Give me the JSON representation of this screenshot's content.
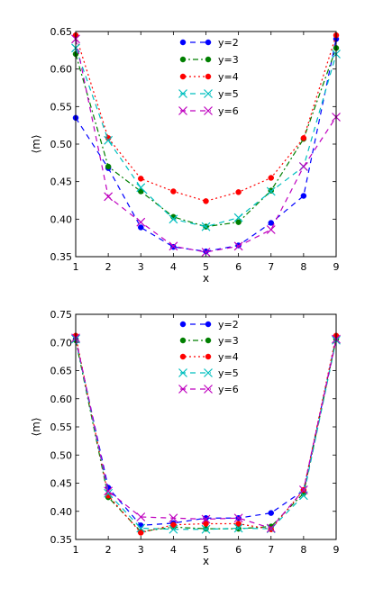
{
  "chart_data": [
    {
      "type": "line",
      "xlabel": "x",
      "ylabel": "⟨m⟩",
      "xlim": [
        1,
        9
      ],
      "ylim": [
        0.35,
        0.65
      ],
      "x_ticks": [
        "1",
        "2",
        "3",
        "4",
        "5",
        "6",
        "7",
        "8",
        "9"
      ],
      "y_ticks": [
        "0.35",
        "0.40",
        "0.45",
        "0.50",
        "0.55",
        "0.60",
        "0.65"
      ],
      "legend_position": "top-center",
      "x": [
        1,
        2,
        3,
        4,
        5,
        6,
        7,
        8,
        9
      ],
      "series": [
        {
          "name": "y=2",
          "color": "#0000ff",
          "marker": "dot",
          "dash": "6,5",
          "values": [
            0.535,
            0.468,
            0.389,
            0.363,
            0.357,
            0.365,
            0.395,
            0.431,
            0.64
          ]
        },
        {
          "name": "y=3",
          "color": "#007f00",
          "marker": "dot",
          "dash": "6,3,2,3",
          "values": [
            0.62,
            0.47,
            0.437,
            0.403,
            0.39,
            0.396,
            0.438,
            0.507,
            0.628
          ]
        },
        {
          "name": "y=4",
          "color": "#ff0000",
          "marker": "dot",
          "dash": "2,3",
          "values": [
            0.645,
            0.508,
            0.454,
            0.437,
            0.424,
            0.436,
            0.455,
            0.508,
            0.645
          ]
        },
        {
          "name": "y=5",
          "color": "#00bfbf",
          "marker": "x",
          "dash": "6,5",
          "values": [
            0.628,
            0.505,
            0.442,
            0.4,
            0.39,
            0.402,
            0.437,
            0.47,
            0.62
          ]
        },
        {
          "name": "y=6",
          "color": "#bf00bf",
          "marker": "x",
          "dash": "6,5",
          "values": [
            0.64,
            0.43,
            0.396,
            0.364,
            0.356,
            0.364,
            0.386,
            0.47,
            0.536
          ]
        }
      ]
    },
    {
      "type": "line",
      "xlabel": "x",
      "ylabel": "⟨m⟩",
      "xlim": [
        1,
        9
      ],
      "ylim": [
        0.35,
        0.75
      ],
      "x_ticks": [
        "1",
        "2",
        "3",
        "4",
        "5",
        "6",
        "7",
        "8",
        "9"
      ],
      "y_ticks": [
        "0.35",
        "0.40",
        "0.45",
        "0.50",
        "0.55",
        "0.60",
        "0.65",
        "0.70",
        "0.75"
      ],
      "legend_position": "top-center",
      "x": [
        1,
        2,
        3,
        4,
        5,
        6,
        7,
        8,
        9
      ],
      "series": [
        {
          "name": "y=2",
          "color": "#0000ff",
          "marker": "dot",
          "dash": "6,5",
          "values": [
            0.706,
            0.442,
            0.375,
            0.379,
            0.388,
            0.388,
            0.397,
            0.437,
            0.708
          ]
        },
        {
          "name": "y=3",
          "color": "#007f00",
          "marker": "dot",
          "dash": "6,3,2,3",
          "values": [
            0.704,
            0.425,
            0.364,
            0.372,
            0.369,
            0.369,
            0.373,
            0.432,
            0.706
          ]
        },
        {
          "name": "y=4",
          "color": "#ff0000",
          "marker": "dot",
          "dash": "2,3",
          "values": [
            0.712,
            0.428,
            0.362,
            0.376,
            0.378,
            0.378,
            0.368,
            0.438,
            0.712
          ]
        },
        {
          "name": "y=5",
          "color": "#00bfbf",
          "marker": "x",
          "dash": "6,5",
          "values": [
            0.706,
            0.432,
            0.37,
            0.368,
            0.368,
            0.37,
            0.369,
            0.428,
            0.704
          ]
        },
        {
          "name": "y=6",
          "color": "#bf00bf",
          "marker": "x",
          "dash": "6,5",
          "values": [
            0.708,
            0.436,
            0.39,
            0.388,
            0.386,
            0.388,
            0.37,
            0.438,
            0.706
          ]
        }
      ]
    }
  ]
}
